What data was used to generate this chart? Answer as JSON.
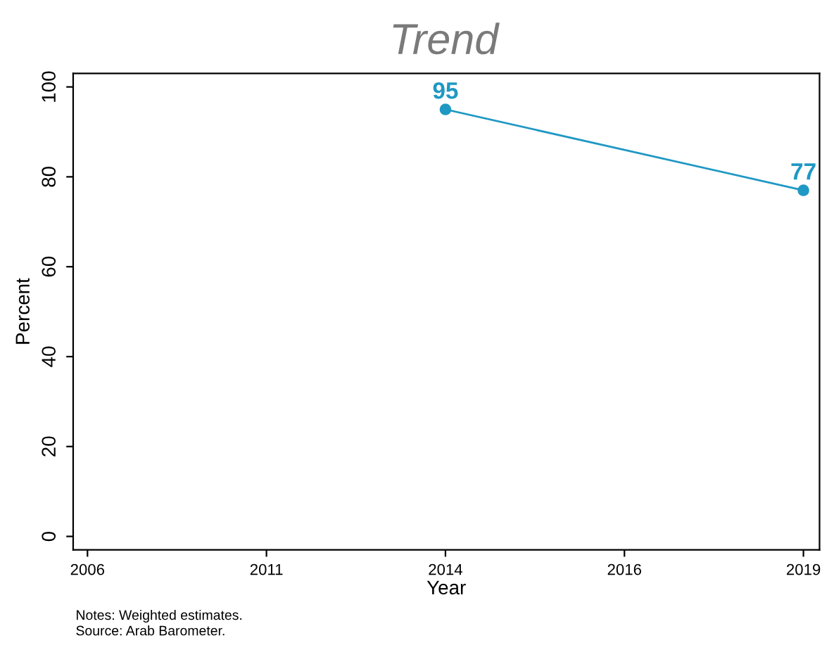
{
  "chart_data": {
    "type": "line",
    "title": "Trend",
    "xlabel": "Year",
    "ylabel": "Percent",
    "categories": [
      "2006",
      "2011",
      "2014",
      "2016",
      "2019"
    ],
    "series": [
      {
        "color": "#1f98c4",
        "values": [
          null,
          null,
          95,
          null,
          77
        ]
      }
    ],
    "ylim": [
      -3,
      103
    ],
    "yticks": [
      0,
      20,
      40,
      60,
      80,
      100
    ],
    "data_labels": true,
    "marker": "circle",
    "line_style": "solid",
    "grid": false,
    "legend": false,
    "annotations": [
      "Notes: Weighted estimates.",
      "Source: Arab Barometer."
    ]
  }
}
